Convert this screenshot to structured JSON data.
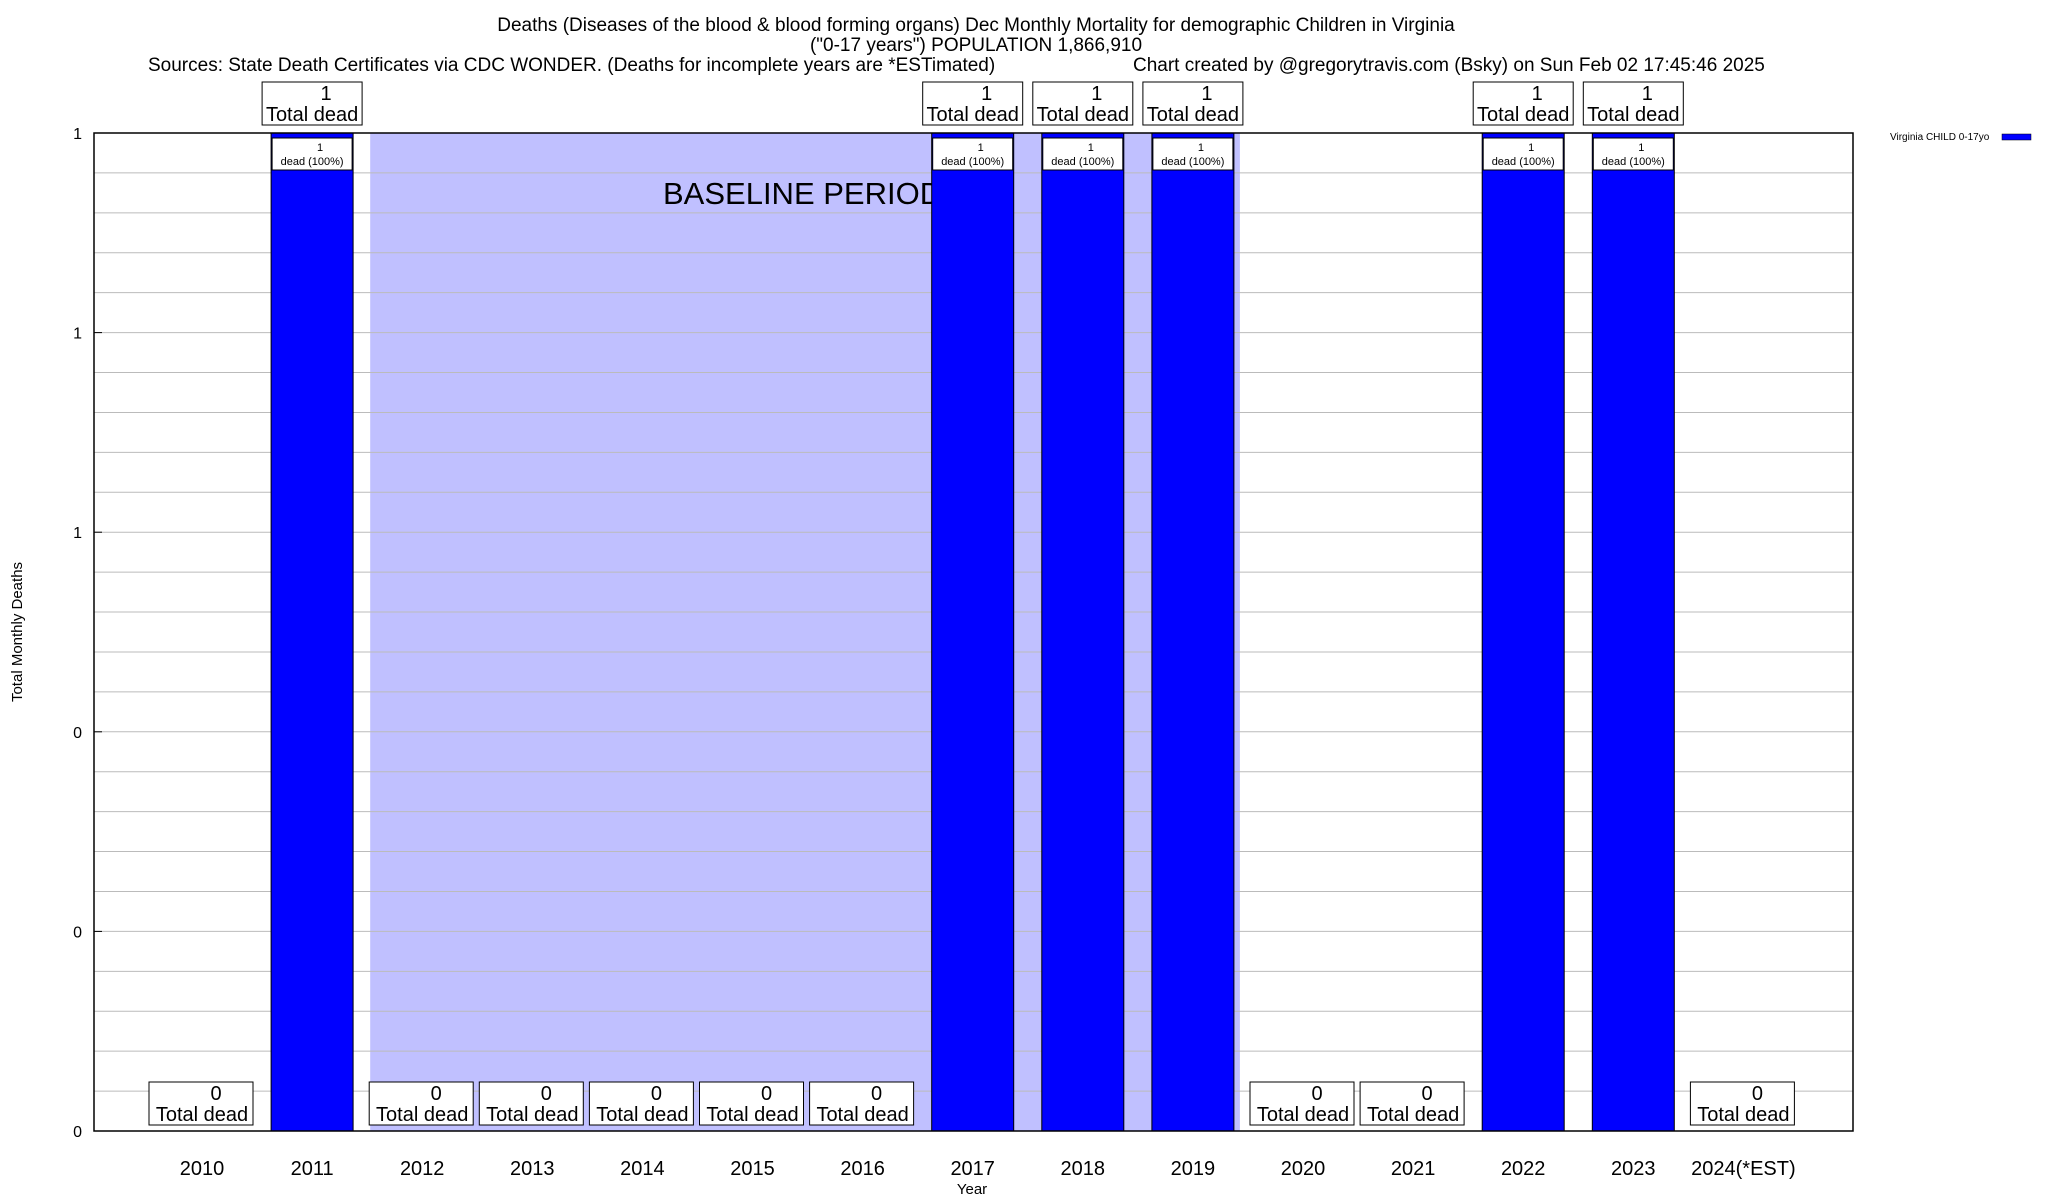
{
  "chart_data": {
    "type": "bar",
    "title": "Deaths (Diseases of the blood & blood forming organs) Dec Monthly Mortality for demographic Children in Virginia",
    "subtitle": "(\"0-17 years\") POPULATION 1,866,910",
    "sources": "Sources: State Death Certificates via CDC WONDER. (Deaths for incomplete years are *ESTimated)",
    "credit": "Chart created by @gregorytravis.com (Bsky) on Sun Feb 02 17:45:46 2025",
    "xlabel": "Year",
    "ylabel": "Total Monthly Deaths",
    "ylim": [
      0,
      1
    ],
    "yticks": [
      0,
      0.2,
      0.4,
      0.6,
      0.8,
      1
    ],
    "ytick_labels": [
      "0",
      "0",
      "0",
      "1",
      "1",
      "1"
    ],
    "grid": true,
    "categories": [
      "2010",
      "2011",
      "2012",
      "2013",
      "2014",
      "2015",
      "2016",
      "2017",
      "2018",
      "2019",
      "2020",
      "2021",
      "2022",
      "2023",
      "2024(*EST)"
    ],
    "series": [
      {
        "name": "Virginia CHILD 0-17yo",
        "color": "#0000ff",
        "values": [
          0,
          1,
          0,
          0,
          0,
          0,
          0,
          1,
          1,
          1,
          0,
          0,
          1,
          1,
          0
        ]
      }
    ],
    "total_label": "Total dead",
    "bar_label": "dead (100%)",
    "baseline": {
      "label": "BASELINE PERIOD",
      "from": "2012",
      "to": "2019",
      "color": "#c0c0ff"
    },
    "legend_position": "right"
  }
}
